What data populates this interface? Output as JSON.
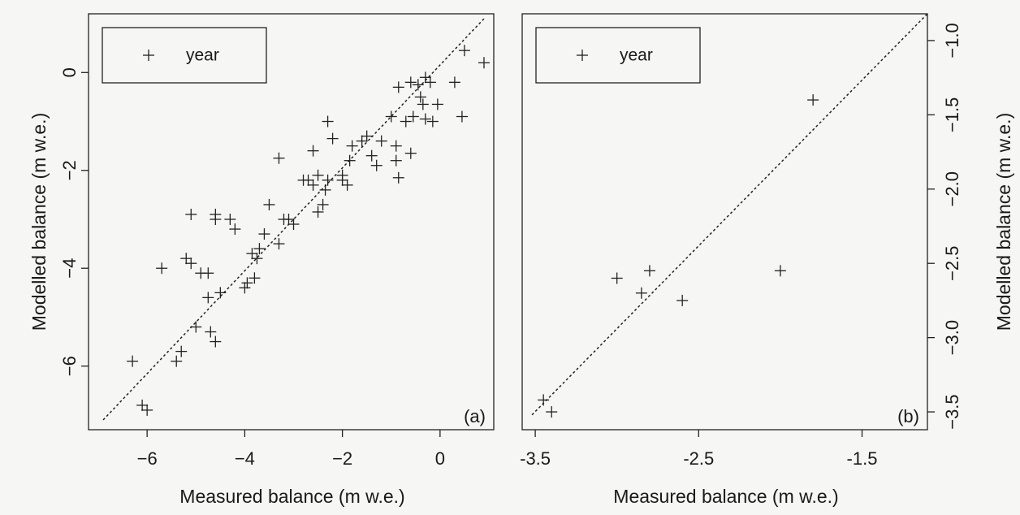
{
  "chart_data": [
    {
      "type": "scatter",
      "panel_label": "(a)",
      "xlabel": "Measured balance (m w.e.)",
      "ylabel": "Modelled balance (m w.e.)",
      "xlim": [
        -7.2,
        1.1
      ],
      "ylim": [
        -7.3,
        1.2
      ],
      "xticks": [
        -6,
        -4,
        -2,
        0
      ],
      "xtick_labels": [
        "−6",
        "−4",
        "−2",
        "0"
      ],
      "yticks": [
        -6,
        -4,
        -2,
        0
      ],
      "ytick_labels": [
        "−6",
        "−4",
        "−2",
        "0"
      ],
      "y_axis_side": "left",
      "grid": false,
      "legend": {
        "position": "top-left",
        "entries": [
          {
            "marker": "+",
            "label": "year"
          }
        ]
      },
      "reference_line": {
        "style": "dotted",
        "from": [
          -6.9,
          -7.1
        ],
        "to": [
          0.9,
          1.1
        ]
      },
      "series": [
        {
          "name": "year",
          "marker": "+",
          "points": [
            [
              -6.3,
              -5.9
            ],
            [
              -6.1,
              -6.8
            ],
            [
              -6.0,
              -6.9
            ],
            [
              -5.7,
              -4.0
            ],
            [
              -5.4,
              -5.9
            ],
            [
              -5.3,
              -5.7
            ],
            [
              -5.2,
              -3.8
            ],
            [
              -5.1,
              -3.9
            ],
            [
              -5.1,
              -2.9
            ],
            [
              -5.0,
              -5.2
            ],
            [
              -4.9,
              -4.1
            ],
            [
              -4.75,
              -4.1
            ],
            [
              -4.75,
              -4.6
            ],
            [
              -4.7,
              -5.3
            ],
            [
              -4.6,
              -5.5
            ],
            [
              -4.6,
              -3.0
            ],
            [
              -4.6,
              -2.9
            ],
            [
              -4.5,
              -4.5
            ],
            [
              -4.3,
              -3.0
            ],
            [
              -4.2,
              -3.2
            ],
            [
              -4.0,
              -4.4
            ],
            [
              -3.95,
              -4.3
            ],
            [
              -3.85,
              -3.7
            ],
            [
              -3.8,
              -4.2
            ],
            [
              -3.75,
              -3.8
            ],
            [
              -3.7,
              -3.6
            ],
            [
              -3.6,
              -3.3
            ],
            [
              -3.5,
              -2.7
            ],
            [
              -3.3,
              -1.75
            ],
            [
              -3.3,
              -3.5
            ],
            [
              -3.2,
              -3.0
            ],
            [
              -3.1,
              -3.0
            ],
            [
              -3.0,
              -3.1
            ],
            [
              -2.8,
              -2.2
            ],
            [
              -2.7,
              -2.2
            ],
            [
              -2.6,
              -2.3
            ],
            [
              -2.6,
              -1.6
            ],
            [
              -2.5,
              -2.1
            ],
            [
              -2.5,
              -2.85
            ],
            [
              -2.4,
              -2.7
            ],
            [
              -2.35,
              -2.4
            ],
            [
              -2.3,
              -2.2
            ],
            [
              -2.3,
              -1.0
            ],
            [
              -2.2,
              -1.35
            ],
            [
              -2.0,
              -2.2
            ],
            [
              -2.0,
              -2.1
            ],
            [
              -1.9,
              -2.3
            ],
            [
              -1.85,
              -1.8
            ],
            [
              -1.8,
              -1.5
            ],
            [
              -1.6,
              -1.4
            ],
            [
              -1.5,
              -1.3
            ],
            [
              -1.4,
              -1.7
            ],
            [
              -1.3,
              -1.9
            ],
            [
              -1.2,
              -1.4
            ],
            [
              -1.0,
              -0.9
            ],
            [
              -0.9,
              -1.8
            ],
            [
              -0.9,
              -1.5
            ],
            [
              -0.85,
              -2.15
            ],
            [
              -0.85,
              -0.3
            ],
            [
              -0.7,
              -1.0
            ],
            [
              -0.6,
              -1.65
            ],
            [
              -0.6,
              -0.2
            ],
            [
              -0.55,
              -0.9
            ],
            [
              -0.45,
              -0.25
            ],
            [
              -0.4,
              -0.5
            ],
            [
              -0.35,
              -0.65
            ],
            [
              -0.3,
              -0.95
            ],
            [
              -0.3,
              -0.1
            ],
            [
              -0.2,
              -0.2
            ],
            [
              -0.15,
              -1.0
            ],
            [
              -0.05,
              -0.65
            ],
            [
              0.3,
              -0.2
            ],
            [
              0.45,
              -0.9
            ],
            [
              0.5,
              0.45
            ],
            [
              0.9,
              0.2
            ]
          ]
        }
      ]
    },
    {
      "type": "scatter",
      "panel_label": "(b)",
      "xlabel": "Measured balance (m w.e.)",
      "ylabel": "Modelled balance (m w.e.)",
      "xlim": [
        -3.58,
        -1.1
      ],
      "ylim": [
        -3.62,
        -0.82
      ],
      "xticks": [
        -3.5,
        -2.5,
        -1.5
      ],
      "xtick_labels": [
        "-3.5",
        "-2.5",
        "-1.5"
      ],
      "yticks": [
        -3.5,
        -3.0,
        -2.5,
        -2.0,
        -1.5,
        -1.0
      ],
      "ytick_labels": [
        "−3.5",
        "−3.0",
        "−2.5",
        "−2.0",
        "−1.5",
        "−1.0"
      ],
      "y_axis_side": "right",
      "grid": false,
      "legend": {
        "position": "top-left",
        "entries": [
          {
            "marker": "+",
            "label": "year"
          }
        ]
      },
      "reference_line": {
        "style": "dotted",
        "from": [
          -3.52,
          -3.52
        ],
        "to": [
          -1.1,
          -0.82
        ]
      },
      "series": [
        {
          "name": "year",
          "marker": "+",
          "points": [
            [
              -3.45,
              -3.42
            ],
            [
              -3.4,
              -3.5
            ],
            [
              -3.0,
              -2.6
            ],
            [
              -2.85,
              -2.7
            ],
            [
              -2.8,
              -2.55
            ],
            [
              -2.6,
              -2.75
            ],
            [
              -2.0,
              -2.55
            ],
            [
              -1.8,
              -1.4
            ]
          ]
        }
      ]
    }
  ]
}
